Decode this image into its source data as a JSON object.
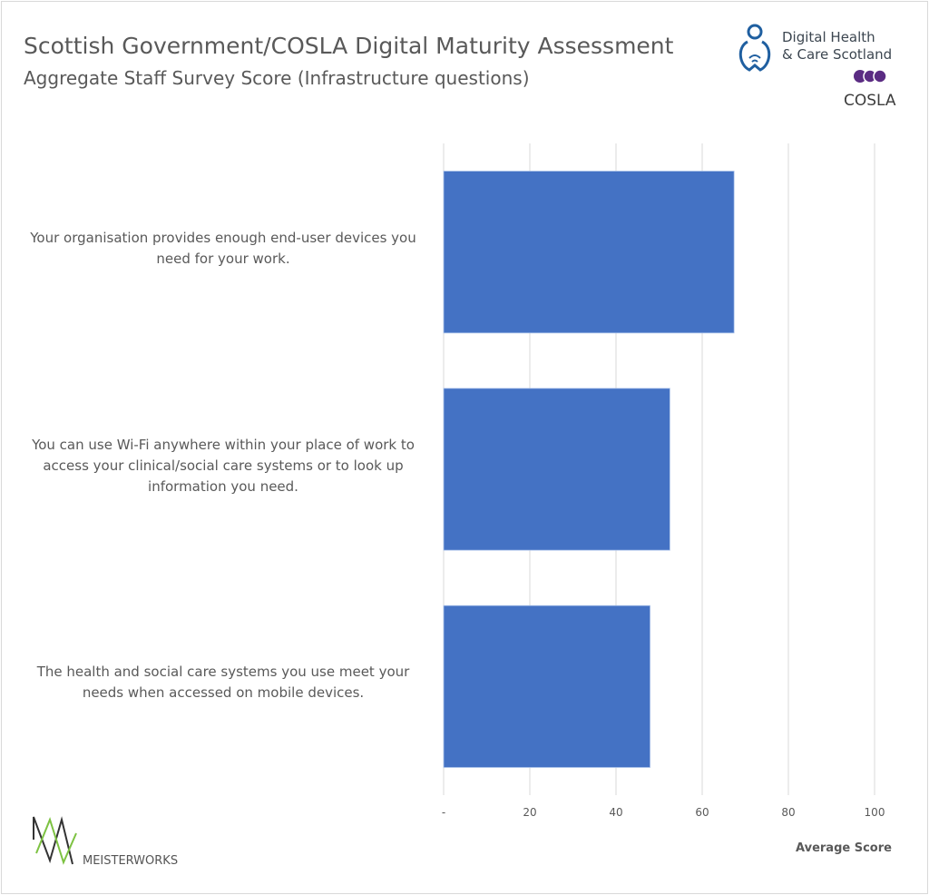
{
  "title": "Scottish Government/COSLA Digital Maturity Assessment",
  "subtitle": "Aggregate Staff Survey Score (Infrastructure questions)",
  "logos": {
    "dhcs_line1": "Digital Health",
    "dhcs_line2": "& Care Scotland",
    "cosla": "COSLA",
    "meisterworks": "MEISTERWORKS"
  },
  "colors": {
    "bar": "#4472c4",
    "grid": "#d9d9d9",
    "text": "#595959",
    "cosla": "#5b2c83",
    "dhcs": "#1f5fa0",
    "meisterworks_green": "#7dc242"
  },
  "chart_data": {
    "type": "bar",
    "orientation": "horizontal",
    "title": "Scottish Government/COSLA Digital Maturity Assessment",
    "subtitle": "Aggregate Staff Survey Score (Infrastructure questions)",
    "categories": [
      [
        "Your organisation provides enough end-user devices you",
        "need for your work."
      ],
      [
        "You can use Wi-Fi anywhere within your place of work to",
        "access your clinical/social care systems or to look up",
        "information you need."
      ],
      [
        "The health and social care systems you use meet your",
        "needs when accessed on mobile devices."
      ]
    ],
    "values": [
      67.4,
      52.5,
      47.9
    ],
    "xlabel": "Average Score",
    "xlim": [
      0,
      100
    ],
    "xticks": [
      "-",
      "20",
      "40",
      "60",
      "80",
      "100"
    ],
    "grid": true,
    "legend": "none"
  }
}
